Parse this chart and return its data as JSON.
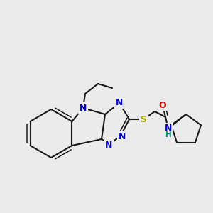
{
  "bg_color": "#ebebeb",
  "bond_color": "#1a1a1a",
  "bond_width": 1.5,
  "atoms": {
    "N_indole": {
      "label": "N",
      "color": "#0000ee",
      "fontsize": 9
    },
    "N3": {
      "label": "N",
      "color": "#0000ee",
      "fontsize": 9
    },
    "N_triz1": {
      "label": "N",
      "color": "#0000ee",
      "fontsize": 9
    },
    "N_triz2": {
      "label": "N",
      "color": "#0000ee",
      "fontsize": 9
    },
    "S": {
      "label": "S",
      "color": "#aaaa00",
      "fontsize": 9
    },
    "O": {
      "label": "O",
      "color": "#cc0000",
      "fontsize": 9
    },
    "N_amide": {
      "label": "N",
      "color": "#0000ee",
      "fontsize": 9
    },
    "H_amide": {
      "label": "H",
      "color": "#008888",
      "fontsize": 8
    }
  }
}
